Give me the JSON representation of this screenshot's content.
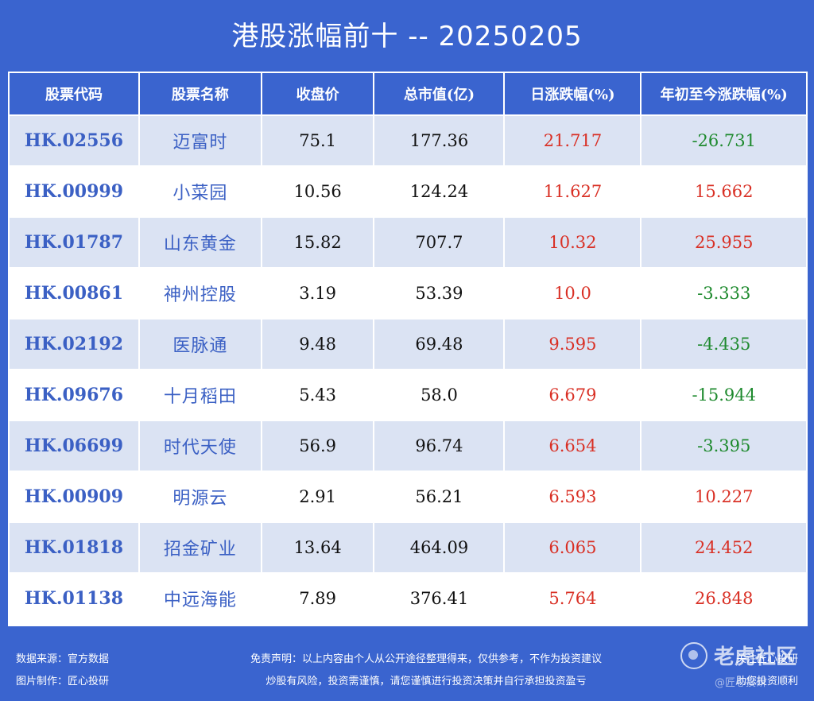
{
  "title": "港股涨幅前十 -- 20250205",
  "table": {
    "headers": [
      "股票代码",
      "股票名称",
      "收盘价",
      "总市值(亿)",
      "日涨跌幅(%)",
      "年初至今涨跌幅(%)"
    ],
    "rows": [
      {
        "code": "HK.02556",
        "name": "迈富时",
        "close": "75.1",
        "cap": "177.36",
        "day": "21.717",
        "ytd": "-26.731"
      },
      {
        "code": "HK.00999",
        "name": "小菜园",
        "close": "10.56",
        "cap": "124.24",
        "day": "11.627",
        "ytd": "15.662"
      },
      {
        "code": "HK.01787",
        "name": "山东黄金",
        "close": "15.82",
        "cap": "707.7",
        "day": "10.32",
        "ytd": "25.955"
      },
      {
        "code": "HK.00861",
        "name": "神州控股",
        "close": "3.19",
        "cap": "53.39",
        "day": "10.0",
        "ytd": "-3.333"
      },
      {
        "code": "HK.02192",
        "name": "医脉通",
        "close": "9.48",
        "cap": "69.48",
        "day": "9.595",
        "ytd": "-4.435"
      },
      {
        "code": "HK.09676",
        "name": "十月稻田",
        "close": "5.43",
        "cap": "58.0",
        "day": "6.679",
        "ytd": "-15.944"
      },
      {
        "code": "HK.06699",
        "name": "时代天使",
        "close": "56.9",
        "cap": "96.74",
        "day": "6.654",
        "ytd": "-3.395"
      },
      {
        "code": "HK.00909",
        "name": "明源云",
        "close": "2.91",
        "cap": "56.21",
        "day": "6.593",
        "ytd": "10.227"
      },
      {
        "code": "HK.01818",
        "name": "招金矿业",
        "close": "13.64",
        "cap": "464.09",
        "day": "6.065",
        "ytd": "24.452"
      },
      {
        "code": "HK.01138",
        "name": "中远海能",
        "close": "7.89",
        "cap": "376.41",
        "day": "5.764",
        "ytd": "26.848"
      }
    ]
  },
  "footer": {
    "source": "数据来源：官方数据",
    "maker": "图片制作：匠心投研",
    "disclaimer1": "免责声明：以上内容由个人从公开途径整理得来，仅供参考，不作为投资建议",
    "disclaimer2": "炒股有风险，投资需谨慎，请您谨慎进行投资决策并自行承担投资盈亏",
    "right1": "关注匠心投研",
    "right2": "助您投资顺利"
  },
  "watermark": {
    "text": "老虎社区",
    "handle": "@匠心投研",
    "icon": "tiger-logo-icon"
  },
  "colors": {
    "background": "#3a64cf",
    "row_alt": "#dbe3f3",
    "up": "#d93025",
    "down": "#1e8a2e",
    "code": "#3b60c4"
  }
}
